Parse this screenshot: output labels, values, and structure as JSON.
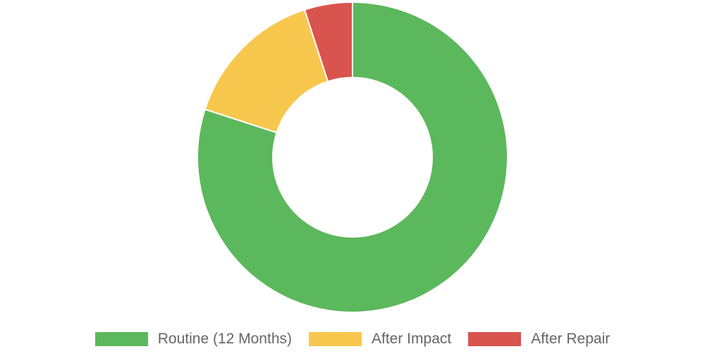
{
  "chart_data": {
    "type": "doughnut",
    "categories": [
      "Routine (12 Months)",
      "After Impact",
      "After Repair"
    ],
    "values": [
      80,
      15,
      5
    ],
    "colors": [
      "#5cb85c",
      "#f8c74e",
      "#d9534f"
    ],
    "legend": "bottom"
  }
}
